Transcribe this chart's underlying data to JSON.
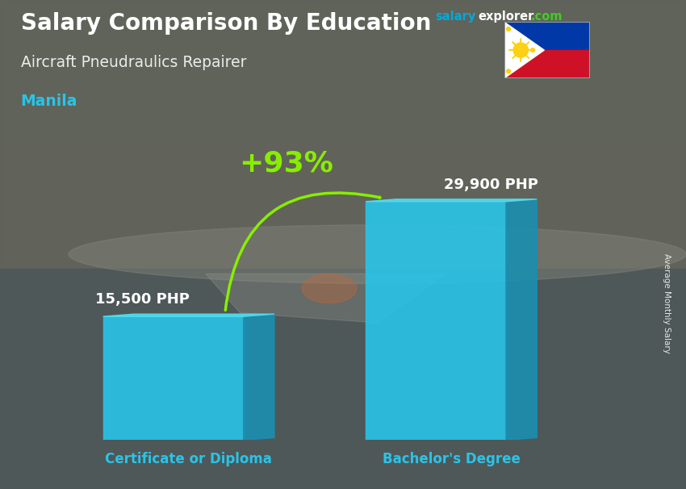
{
  "title": "Salary Comparison By Education",
  "subtitle": "Aircraft Pneudraulics Repairer",
  "city": "Manila",
  "categories": [
    "Certificate or Diploma",
    "Bachelor's Degree"
  ],
  "values": [
    15500,
    29900
  ],
  "value_labels": [
    "15,500 PHP",
    "29,900 PHP"
  ],
  "pct_change": "+93%",
  "bar_color_face": "#29C4E8",
  "bar_color_side": "#1A8FB0",
  "bar_color_top": "#55DDEF",
  "arrow_color": "#88EE00",
  "text_color_white": "#FFFFFF",
  "text_color_cyan": "#29C4E8",
  "text_color_green": "#88EE00",
  "ylabel": "Average Monthly Salary",
  "bg_color": "#5a6060",
  "salary_color1": "#00aadd",
  "salary_color2": "#44cc22",
  "figsize": [
    8.5,
    6.06
  ],
  "dpi": 100,
  "bar_positions": [
    2.5,
    6.8
  ],
  "bar_width": 2.3,
  "xlim": [
    0,
    10
  ],
  "ylim": [
    0,
    38000
  ],
  "depth_x": 0.22,
  "depth_y": 600
}
